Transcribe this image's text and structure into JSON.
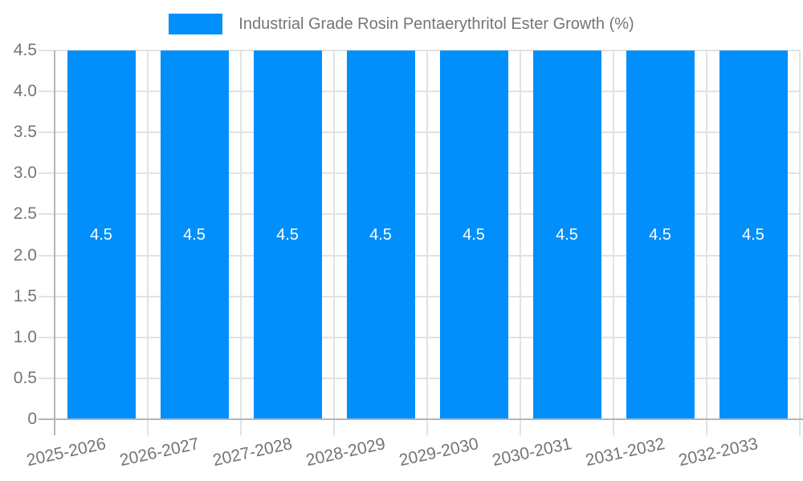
{
  "chart_data": {
    "type": "bar",
    "title": "Industrial Grade Rosin Pentaerythritol Ester Growth (%)",
    "xlabel": "",
    "ylabel": "",
    "categories": [
      "2025-2026",
      "2026-2027",
      "2027-2028",
      "2028-2029",
      "2029-2030",
      "2030-2031",
      "2031-2032",
      "2032-2033"
    ],
    "series": [
      {
        "name": "Industrial Grade Rosin Pentaerythritol Ester Growth (%)",
        "color": "#008FFB",
        "values": [
          4.5,
          4.5,
          4.5,
          4.5,
          4.5,
          4.5,
          4.5,
          4.5
        ]
      }
    ],
    "value_labels": [
      "4.5",
      "4.5",
      "4.5",
      "4.5",
      "4.5",
      "4.5",
      "4.5",
      "4.5"
    ],
    "ylim": [
      0,
      4.5
    ],
    "yticks": [
      0,
      0.5,
      1.0,
      1.5,
      2.0,
      2.5,
      3.0,
      3.5,
      4.0,
      4.5
    ],
    "ytick_labels": [
      "0",
      "0.5",
      "1.0",
      "1.5",
      "2.0",
      "2.5",
      "3.0",
      "3.5",
      "4.0",
      "4.5"
    ],
    "grid": true,
    "legend_position": "top",
    "x_label_rotation_deg": -12.5,
    "colors": {
      "bar": "#008FFB",
      "text": "#757575",
      "grid": "#E2E2E2",
      "axis": "#B5B5B5",
      "value_label": "#FFFFFF",
      "background": "#FFFFFF"
    }
  }
}
